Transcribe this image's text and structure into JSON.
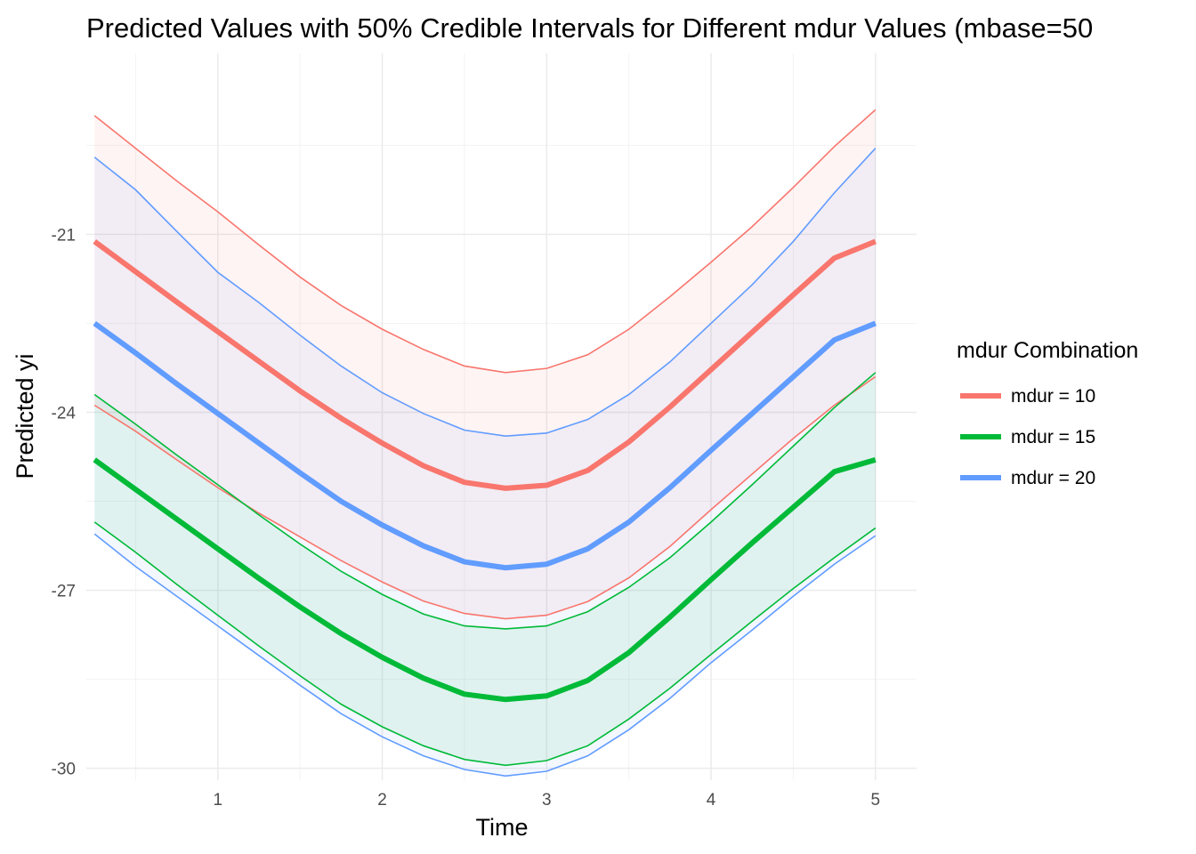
{
  "chart_data": {
    "type": "line",
    "title": "Predicted Values with 50% Credible Intervals for Different mdur Values (mbase=50",
    "xlabel": "Time",
    "ylabel": "Predicted yi",
    "xlim": [
      0.2,
      5.25
    ],
    "ylim": [
      -30.2,
      -17.95
    ],
    "x_ticks": [
      1,
      2,
      3,
      4,
      5
    ],
    "y_ticks": [
      -21,
      -24,
      -27,
      -30
    ],
    "x_tick_labels": [
      "1",
      "2",
      "3",
      "4",
      "5"
    ],
    "y_tick_labels": [
      "-21",
      "-24",
      "-27",
      "-30"
    ],
    "grid": true,
    "legend": {
      "title": "mdur Combination",
      "position": "right"
    },
    "x": [
      0.25,
      0.5,
      0.75,
      1.0,
      1.25,
      1.5,
      1.75,
      2.0,
      2.25,
      2.5,
      2.75,
      3.0,
      3.25,
      3.5,
      3.75,
      4.0,
      4.25,
      4.5,
      4.75,
      5.0
    ],
    "series": [
      {
        "name": "mdur = 10",
        "color": "#F8766D",
        "values": [
          -21.12,
          -21.63,
          -22.14,
          -22.64,
          -23.14,
          -23.64,
          -24.1,
          -24.52,
          -24.9,
          -25.18,
          -25.28,
          -25.23,
          -24.98,
          -24.5,
          -23.91,
          -23.28,
          -22.65,
          -22.02,
          -21.4,
          -21.12
        ],
        "lower": [
          -23.88,
          -24.32,
          -24.8,
          -25.27,
          -25.7,
          -26.1,
          -26.5,
          -26.86,
          -27.18,
          -27.39,
          -27.48,
          -27.42,
          -27.19,
          -26.79,
          -26.26,
          -25.64,
          -25.04,
          -24.44,
          -23.88,
          -23.4
        ],
        "upper": [
          -19.0,
          -19.55,
          -20.1,
          -20.62,
          -21.18,
          -21.72,
          -22.2,
          -22.6,
          -22.94,
          -23.22,
          -23.33,
          -23.26,
          -23.03,
          -22.6,
          -22.05,
          -21.47,
          -20.87,
          -20.21,
          -19.52,
          -18.9
        ]
      },
      {
        "name": "mdur = 15",
        "color": "#00BA38",
        "values": [
          -24.8,
          -25.3,
          -25.8,
          -26.3,
          -26.8,
          -27.28,
          -27.73,
          -28.13,
          -28.48,
          -28.75,
          -28.84,
          -28.78,
          -28.52,
          -28.05,
          -27.45,
          -26.82,
          -26.2,
          -25.6,
          -25.0,
          -24.8
        ],
        "lower": [
          -25.85,
          -26.36,
          -26.9,
          -27.42,
          -27.94,
          -28.44,
          -28.92,
          -29.3,
          -29.62,
          -29.85,
          -29.95,
          -29.87,
          -29.62,
          -29.17,
          -28.65,
          -28.08,
          -27.52,
          -26.97,
          -26.45,
          -25.95
        ],
        "upper": [
          -23.7,
          -24.2,
          -24.72,
          -25.22,
          -25.73,
          -26.22,
          -26.68,
          -27.07,
          -27.4,
          -27.6,
          -27.65,
          -27.6,
          -27.36,
          -26.95,
          -26.45,
          -25.85,
          -25.22,
          -24.57,
          -23.92,
          -23.33
        ]
      },
      {
        "name": "mdur = 20",
        "color": "#619CFF",
        "values": [
          -22.5,
          -23.0,
          -23.52,
          -24.02,
          -24.52,
          -25.02,
          -25.5,
          -25.9,
          -26.25,
          -26.52,
          -26.62,
          -26.56,
          -26.3,
          -25.85,
          -25.27,
          -24.64,
          -24.02,
          -23.4,
          -22.78,
          -22.5
        ],
        "lower": [
          -26.05,
          -26.6,
          -27.1,
          -27.6,
          -28.1,
          -28.6,
          -29.08,
          -29.47,
          -29.79,
          -30.02,
          -30.13,
          -30.05,
          -29.79,
          -29.35,
          -28.82,
          -28.22,
          -27.67,
          -27.1,
          -26.56,
          -26.08
        ],
        "upper": [
          -19.7,
          -20.25,
          -20.95,
          -21.64,
          -22.15,
          -22.7,
          -23.22,
          -23.67,
          -24.02,
          -24.3,
          -24.4,
          -24.35,
          -24.12,
          -23.7,
          -23.15,
          -22.5,
          -21.85,
          -21.12,
          -20.3,
          -19.55
        ]
      }
    ]
  }
}
